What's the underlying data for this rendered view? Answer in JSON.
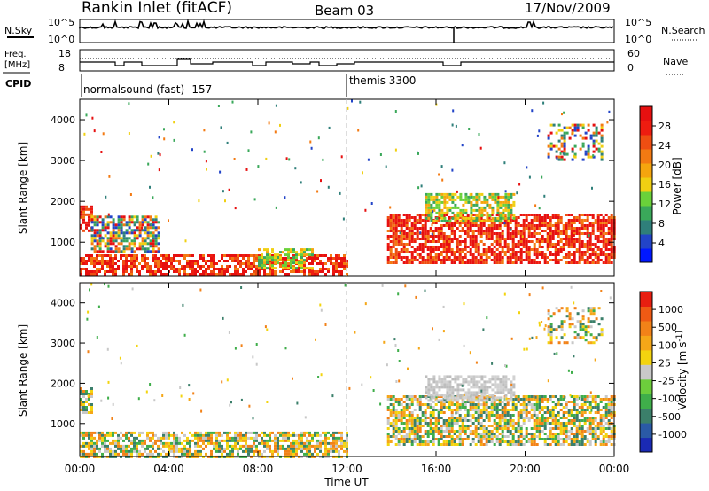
{
  "header": {
    "station": "Rankin Inlet (fitACF)",
    "beam": "Beam 03",
    "date": "17/Nov/2009"
  },
  "noise_panel": {
    "left_label": "N.Sky",
    "right_label": "N.Search",
    "left_ticks": [
      "10^5",
      "10^0"
    ],
    "right_ticks": [
      "10^5",
      "10^0"
    ]
  },
  "freq_panel": {
    "left_label_1": "Freq.",
    "left_label_2": "[MHz]",
    "right_label": "Nave",
    "left_ticks": [
      "18",
      "8"
    ],
    "right_ticks": [
      "60",
      "0"
    ]
  },
  "cpid_panel": {
    "label": "CPID",
    "modes": [
      {
        "name": "normalsound (fast) -157",
        "start_hour": 0
      },
      {
        "name": "themis 3300",
        "start_hour": 12.0
      }
    ]
  },
  "chart_data": [
    {
      "type": "heatmap",
      "parameter": "power",
      "ylabel": "Slant Range [km]",
      "yticks": [
        1000,
        2000,
        3000,
        4000
      ],
      "ylim": [
        180,
        4500
      ],
      "xlim_hours": [
        0,
        24
      ],
      "colorbar": {
        "label": "Power [dB]",
        "ticks": [
          "28",
          "24",
          "20",
          "16",
          "12",
          "8",
          "4"
        ],
        "colors": [
          "#0018ff",
          "#2244c8",
          "#2f7f7a",
          "#3aa85a",
          "#6ad13a",
          "#f0d012",
          "#f5a50e",
          "#f37a12",
          "#ef4e12",
          "#ee1c10",
          "#e61010"
        ]
      },
      "regions": [
        {
          "h0": 0.0,
          "h1": 0.5,
          "r0": 1250,
          "r1": 1900,
          "level": "high"
        },
        {
          "h0": 0.5,
          "h1": 3.5,
          "r0": 800,
          "r1": 1650,
          "level": "mixed"
        },
        {
          "h0": 0.0,
          "h1": 12.0,
          "r0": 200,
          "r1": 700,
          "level": "high"
        },
        {
          "h0": 8.0,
          "h1": 10.5,
          "r0": 350,
          "r1": 850,
          "level": "mid"
        },
        {
          "h0": 13.8,
          "h1": 24.0,
          "r0": 500,
          "r1": 1700,
          "level": "high"
        },
        {
          "h0": 15.5,
          "h1": 19.5,
          "r0": 1500,
          "r1": 2200,
          "level": "mid"
        },
        {
          "h0": 21.0,
          "h1": 23.5,
          "r0": 3000,
          "r1": 3900,
          "level": "scatter"
        }
      ]
    },
    {
      "type": "heatmap",
      "parameter": "velocity",
      "ylabel": "Slant Range [km]",
      "xlabel": "Time UT",
      "yticks": [
        1000,
        2000,
        3000,
        4000
      ],
      "ylim": [
        180,
        4500
      ],
      "xticks": [
        "00:00",
        "04:00",
        "08:00",
        "12:00",
        "16:00",
        "20:00",
        "00:00"
      ],
      "colorbar": {
        "label": "Velocity [m s^-1]",
        "ticks": [
          "1000",
          "500",
          "100",
          "25",
          "-25",
          "-100",
          "-500",
          "-1000"
        ],
        "colors": [
          "#1a2ab4",
          "#2a5aa6",
          "#3b7f6a",
          "#3fae4a",
          "#6dcd3c",
          "#c8c8c8",
          "#f3d40f",
          "#f5a718",
          "#f28218",
          "#ef5a14",
          "#e81e10"
        ]
      },
      "regions": [
        {
          "h0": 0.0,
          "h1": 0.5,
          "r0": 1250,
          "r1": 1900,
          "level": "mixed"
        },
        {
          "h0": 0.0,
          "h1": 12.0,
          "r0": 200,
          "r1": 800,
          "level": "mixed"
        },
        {
          "h0": 13.8,
          "h1": 24.0,
          "r0": 500,
          "r1": 1700,
          "level": "mixed"
        },
        {
          "h0": 15.5,
          "h1": 19.5,
          "r0": 1600,
          "r1": 2200,
          "level": "ground"
        },
        {
          "h0": 21.0,
          "h1": 23.5,
          "r0": 3000,
          "r1": 3900,
          "level": "scatter"
        }
      ]
    }
  ]
}
